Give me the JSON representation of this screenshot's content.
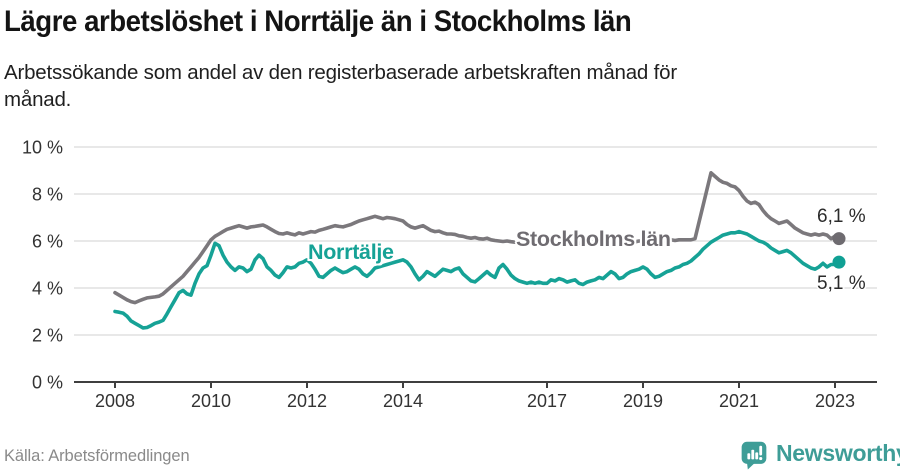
{
  "header": {
    "title": "Lägre arbetslöshet i Norrtälje än i Stockholms län",
    "subtitle": "Arbetssökande som andel av den registerbaserade arbetskraften månad för månad."
  },
  "footer": {
    "source": "Källa: Arbetsförmedlingen",
    "logo_text": "Newsworthy",
    "logo_color": "#3e9d97"
  },
  "chart_data": {
    "type": "line",
    "title": "Lägre arbetslöshet i Norrtälje än i Stockholms län",
    "x_unit": "month",
    "x_start": "2008-01",
    "x_end": "2023-02",
    "ylim": [
      0,
      10
    ],
    "grid": "horizontal",
    "legend_position": "inline-labels",
    "grid_color": "#d9d9d9",
    "axis_color": "#3f3f3f",
    "y_ticks": [
      {
        "value": 0,
        "label": "0 %"
      },
      {
        "value": 2,
        "label": "2 %"
      },
      {
        "value": 4,
        "label": "4 %"
      },
      {
        "value": 6,
        "label": "6 %"
      },
      {
        "value": 8,
        "label": "8 %"
      },
      {
        "value": 10,
        "label": "10 %"
      }
    ],
    "x_ticks": [
      {
        "year": 2008,
        "label": "2008"
      },
      {
        "year": 2010,
        "label": "2010"
      },
      {
        "year": 2012,
        "label": "2012"
      },
      {
        "year": 2014,
        "label": "2014"
      },
      {
        "year": 2017,
        "label": "2017"
      },
      {
        "year": 2019,
        "label": "2019"
      },
      {
        "year": 2021,
        "label": "2021"
      },
      {
        "year": 2023,
        "label": "2023"
      }
    ],
    "series": [
      {
        "id": "stockholms-lan",
        "name": "Stockholms län",
        "color": "#7b787c",
        "label_color": "#6f6c71",
        "dot_color": "#6e6b70",
        "end_label": "6,1 %",
        "end_value": 6.1,
        "values": [
          3.8,
          3.7,
          3.6,
          3.5,
          3.42,
          3.38,
          3.45,
          3.52,
          3.58,
          3.6,
          3.62,
          3.65,
          3.75,
          3.9,
          4.05,
          4.2,
          4.35,
          4.5,
          4.7,
          4.9,
          5.1,
          5.3,
          5.55,
          5.8,
          6.05,
          6.2,
          6.3,
          6.4,
          6.5,
          6.55,
          6.6,
          6.65,
          6.6,
          6.55,
          6.6,
          6.62,
          6.65,
          6.68,
          6.6,
          6.5,
          6.4,
          6.32,
          6.3,
          6.35,
          6.3,
          6.26,
          6.35,
          6.3,
          6.35,
          6.4,
          6.38,
          6.45,
          6.5,
          6.55,
          6.6,
          6.65,
          6.62,
          6.6,
          6.65,
          6.7,
          6.78,
          6.85,
          6.9,
          6.95,
          7.0,
          7.05,
          7.0,
          6.95,
          7.0,
          6.98,
          6.95,
          6.9,
          6.85,
          6.7,
          6.6,
          6.55,
          6.6,
          6.65,
          6.55,
          6.45,
          6.4,
          6.42,
          6.35,
          6.3,
          6.3,
          6.28,
          6.22,
          6.2,
          6.15,
          6.12,
          6.15,
          6.1,
          6.08,
          6.12,
          6.05,
          6.02,
          6.0,
          5.98,
          6.0,
          5.97,
          5.95,
          5.92,
          5.9,
          5.93,
          5.9,
          5.88,
          5.9,
          5.87,
          5.9,
          5.93,
          5.9,
          5.87,
          5.9,
          5.88,
          5.9,
          5.93,
          5.9,
          5.95,
          5.97,
          5.95,
          5.97,
          5.93,
          5.9,
          5.92,
          5.88,
          5.9,
          5.95,
          5.92,
          5.95,
          5.98,
          5.96,
          6.0,
          6.0,
          5.97,
          6.0,
          6.02,
          6.03,
          6.0,
          6.03,
          6.05,
          6.02,
          6.05,
          6.05,
          6.05,
          6.05,
          6.1,
          6.8,
          7.5,
          8.2,
          8.9,
          8.75,
          8.6,
          8.5,
          8.45,
          8.35,
          8.3,
          8.15,
          7.9,
          7.7,
          7.6,
          7.65,
          7.55,
          7.3,
          7.1,
          6.95,
          6.85,
          6.75,
          6.8,
          6.85,
          6.7,
          6.55,
          6.45,
          6.35,
          6.3,
          6.25,
          6.3,
          6.25,
          6.3,
          6.25,
          6.1,
          6.2,
          6.1
        ]
      },
      {
        "id": "norrtalje",
        "name": "Norrtälje",
        "color": "#16a296",
        "label_color": "#16a296",
        "dot_color": "#10a094",
        "end_label": "5,1 %",
        "end_value": 5.1,
        "values": [
          3.0,
          2.97,
          2.93,
          2.8,
          2.6,
          2.5,
          2.4,
          2.3,
          2.32,
          2.4,
          2.5,
          2.55,
          2.62,
          2.9,
          3.2,
          3.5,
          3.8,
          3.9,
          3.75,
          3.7,
          4.2,
          4.6,
          4.85,
          4.95,
          5.4,
          5.9,
          5.8,
          5.4,
          5.1,
          4.9,
          4.75,
          4.9,
          4.85,
          4.7,
          4.8,
          5.2,
          5.4,
          5.25,
          4.9,
          4.75,
          4.55,
          4.45,
          4.65,
          4.9,
          4.85,
          4.9,
          5.05,
          5.1,
          5.2,
          5.05,
          4.8,
          4.5,
          4.45,
          4.6,
          4.75,
          4.85,
          4.75,
          4.65,
          4.7,
          4.8,
          4.9,
          4.8,
          4.6,
          4.5,
          4.65,
          4.85,
          4.9,
          4.95,
          5.0,
          5.05,
          5.1,
          5.15,
          5.2,
          5.1,
          4.9,
          4.6,
          4.35,
          4.5,
          4.7,
          4.6,
          4.5,
          4.65,
          4.8,
          4.75,
          4.7,
          4.8,
          4.85,
          4.6,
          4.45,
          4.3,
          4.26,
          4.4,
          4.55,
          4.7,
          4.55,
          4.45,
          4.85,
          5.0,
          4.8,
          4.55,
          4.4,
          4.3,
          4.25,
          4.2,
          4.25,
          4.2,
          4.25,
          4.2,
          4.2,
          4.35,
          4.3,
          4.4,
          4.35,
          4.25,
          4.3,
          4.35,
          4.2,
          4.15,
          4.25,
          4.3,
          4.35,
          4.45,
          4.4,
          4.55,
          4.7,
          4.6,
          4.4,
          4.45,
          4.6,
          4.7,
          4.75,
          4.8,
          4.9,
          4.8,
          4.6,
          4.45,
          4.5,
          4.6,
          4.7,
          4.75,
          4.85,
          4.9,
          5.0,
          5.05,
          5.15,
          5.3,
          5.45,
          5.65,
          5.8,
          5.95,
          6.05,
          6.15,
          6.25,
          6.3,
          6.35,
          6.35,
          6.4,
          6.35,
          6.3,
          6.2,
          6.1,
          6.0,
          5.95,
          5.85,
          5.7,
          5.6,
          5.5,
          5.55,
          5.6,
          5.5,
          5.35,
          5.2,
          5.05,
          4.95,
          4.85,
          4.8,
          4.9,
          5.05,
          4.9,
          5.0,
          5.0,
          5.1
        ]
      }
    ]
  }
}
